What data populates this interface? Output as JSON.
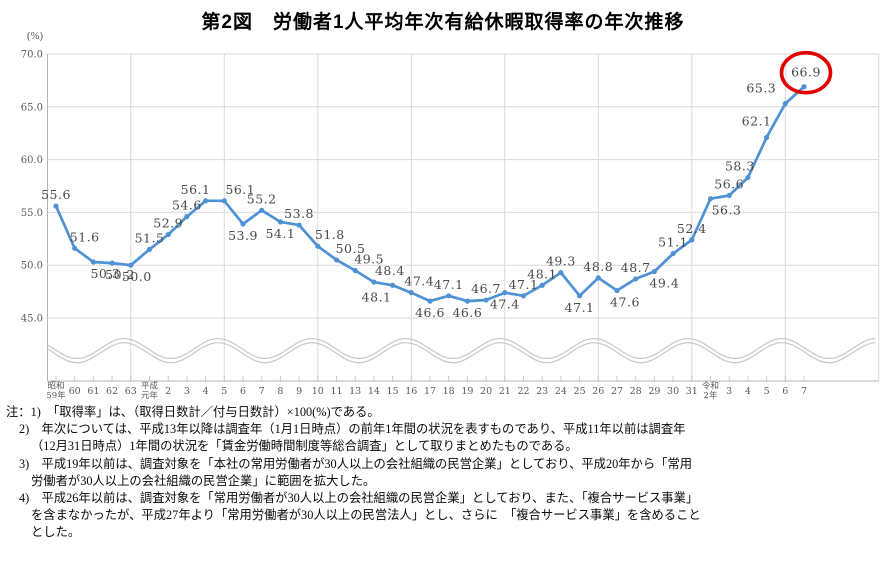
{
  "chart_data": {
    "type": "line",
    "title": "第2図　労働者1人平均年次有給休暇取得率の年次推移",
    "ylabel": "(%)",
    "ylim": [
      45,
      70
    ],
    "yticks": [
      70,
      65,
      60,
      55,
      50,
      45
    ],
    "grid": true,
    "axis_break": "wavy lines below 45.0 (y-axis does not start at 0)",
    "legend": "none",
    "categories": [
      "昭和\n59年",
      "60",
      "61",
      "62",
      "63",
      "平成\n元年",
      "2",
      "3",
      "4",
      "5",
      "6",
      "7",
      "8",
      "9",
      "10",
      "11",
      "13",
      "14",
      "15",
      "16",
      "17",
      "18",
      "19",
      "20",
      "21",
      "22",
      "23",
      "24",
      "25",
      "26",
      "27",
      "28",
      "29",
      "30",
      "31",
      "令和\n2年",
      "3",
      "4",
      "5",
      "6",
      "7"
    ],
    "values": [
      55.6,
      51.6,
      50.3,
      50.2,
      50.0,
      51.5,
      52.9,
      54.6,
      56.1,
      56.1,
      53.9,
      55.2,
      54.1,
      53.8,
      51.8,
      50.5,
      49.5,
      48.4,
      48.1,
      47.4,
      46.6,
      47.1,
      46.6,
      46.7,
      47.4,
      47.1,
      48.1,
      49.3,
      47.1,
      48.8,
      47.6,
      48.7,
      49.4,
      51.1,
      52.4,
      56.3,
      56.6,
      58.3,
      62.1,
      65.3,
      66.9
    ],
    "label_side": [
      "a",
      "a",
      "b",
      "b",
      "b",
      "a",
      "a",
      "a",
      "a",
      "a",
      "b",
      "a",
      "b",
      "a",
      "a",
      "a",
      "a",
      "a",
      "b",
      "a",
      "b",
      "a",
      "b",
      "a",
      "b",
      "a",
      "a",
      "a",
      "b",
      "a",
      "b",
      "a",
      "b",
      "a",
      "a",
      "b",
      "a",
      "a",
      "a",
      "a",
      "a"
    ],
    "label_dx": {
      "1": 10,
      "2": 12,
      "3": 8,
      "4": 6,
      "8": -10,
      "9": 16,
      "14": 12,
      "15": 14,
      "16": 14,
      "17": 16,
      "18": -16,
      "19": 8,
      "30": 8,
      "32": 10,
      "35": 16,
      "37": -8,
      "38": -10,
      "39": -24,
      "40": 2
    },
    "label_dy": {
      "38": -12,
      "39": -11,
      "40": -10
    },
    "line_color": "#4E91D5",
    "marker": "circle",
    "grid_color": "#D9D9D9",
    "axis_color": "#B3B3B3",
    "wave_color": "#C8C8C8",
    "data_label_color": "#4a4a4a",
    "tick_label_color": "#595959",
    "highlight": {
      "index": 40,
      "value_label": "66.9",
      "shape": "red-circle",
      "color": "#E10000"
    }
  },
  "notes": {
    "lines": [
      {
        "indent": 0,
        "text": "注：1)　「取得率」は、（取得日数計／付与日数計）×100(%)である。"
      },
      {
        "indent": 1,
        "text": "2)　年次については、平成13年以降は調査年（1月1日時点）の前年1年間の状況を表すものであり、平成11年以前は調査年"
      },
      {
        "indent": 2,
        "text": "（12月31日時点）1年間の状況を「賃金労働時間制度等総合調査」として取りまとめたものである。"
      },
      {
        "indent": 1,
        "text": "3)　平成19年以前は、調査対象を「本社の常用労働者が30人以上の会社組織の民営企業」としており、平成20年から「常用"
      },
      {
        "indent": 2,
        "text": "労働者が30人以上の会社組織の民営企業」に範囲を拡大した。"
      },
      {
        "indent": 1,
        "text": "4)　平成26年以前は、調査対象を「常用労働者が30人以上の会社組織の民営企業」としており、また、「複合サービス事業」"
      },
      {
        "indent": 2,
        "text": "を含まなかったが、平成27年より「常用労働者が30人以上の民営法人」とし、さらに　「複合サービス事業」を含めること"
      },
      {
        "indent": 2,
        "text": "とした。"
      }
    ]
  }
}
